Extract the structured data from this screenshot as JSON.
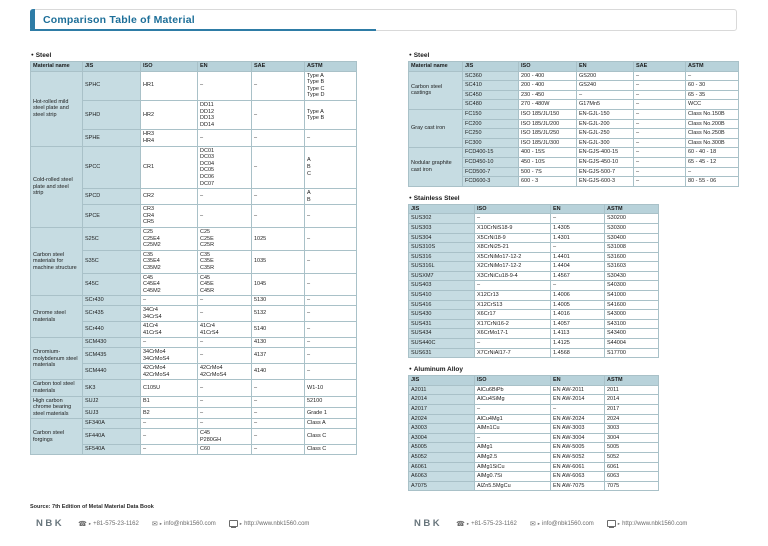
{
  "title": "Comparison Table of Material",
  "icons": {
    "bullet": "●",
    "chevron": "▸",
    "phone": "☎",
    "mail": "✉"
  },
  "sections": {
    "left_steel": {
      "label": "Steel",
      "columns": [
        "Material name",
        "JIS",
        "ISO",
        "EN",
        "SAE",
        "ASTM"
      ],
      "groups": [
        {
          "name": "Hot-rolled mild steel plate and steel strip",
          "rows": [
            {
              "jis": "SPHC",
              "iso": "HR1",
              "en": "–",
              "sae": "–",
              "astm": "Type A\nType B\nType C\nType D"
            },
            {
              "jis": "SPHD",
              "iso": "HR2",
              "en": "DD11\nDD12\nDD13\nDD14",
              "sae": "–",
              "astm": "Type A\nType B"
            },
            {
              "jis": "SPHE",
              "iso": "HR3\nHR4",
              "en": "–",
              "sae": "–",
              "astm": "–"
            }
          ]
        },
        {
          "name": "Cold-rolled steel plate and steel strip",
          "rows": [
            {
              "jis": "SPCC",
              "iso": "CR1",
              "en": "DC01\nDC03\nDC04\nDC05\nDC06\nDC07",
              "sae": "–",
              "astm": "A\nB\nC"
            },
            {
              "jis": "SPCD",
              "iso": "CR2",
              "en": "–",
              "sae": "–",
              "astm": "A\nB"
            },
            {
              "jis": "SPCE",
              "iso": "CR3\nCR4\nCR5",
              "en": "–",
              "sae": "–",
              "astm": "–"
            }
          ]
        },
        {
          "name": "Carbon steel materials for machine structure",
          "rows": [
            {
              "jis": "S25C",
              "iso": "C25\nC25E4\nC25M2",
              "en": "C25\nC25E\nC25R",
              "sae": "1025",
              "astm": "–"
            },
            {
              "jis": "S35C",
              "iso": "C35\nC35E4\nC35M2",
              "en": "C35\nC35E\nC35R",
              "sae": "1035",
              "astm": "–"
            },
            {
              "jis": "S45C",
              "iso": "C45\nC45E4\nC45M2",
              "en": "C45\nC45E\nC45R",
              "sae": "1045",
              "astm": "–"
            }
          ]
        },
        {
          "name": "Chrome steel materials",
          "rows": [
            {
              "jis": "SCr430",
              "iso": "–",
              "en": "–",
              "sae": "5130",
              "astm": "–"
            },
            {
              "jis": "SCr435",
              "iso": "34Cr4\n34CrS4",
              "en": "–",
              "sae": "5132",
              "astm": "–"
            },
            {
              "jis": "SCr440",
              "iso": "41Cr4\n41CrS4",
              "en": "41Cr4\n41CrS4",
              "sae": "5140",
              "astm": "–"
            }
          ]
        },
        {
          "name": "Chromium-molybdenum steel materials",
          "rows": [
            {
              "jis": "SCM430",
              "iso": "–",
              "en": "–",
              "sae": "4130",
              "astm": "–"
            },
            {
              "jis": "SCM435",
              "iso": "34CrMo4\n34CrMoS4",
              "en": "–",
              "sae": "4137",
              "astm": "–"
            },
            {
              "jis": "SCM440",
              "iso": "42CrMo4\n42CrMoS4",
              "en": "42CrMo4\n42CrMoS4",
              "sae": "4140",
              "astm": "–"
            }
          ]
        },
        {
          "name": "Carbon tool steel materials",
          "rows": [
            {
              "jis": "SK3",
              "iso": "C105U",
              "en": "–",
              "sae": "–",
              "astm": "W1-10"
            }
          ]
        },
        {
          "name": "High carbon chrome bearing steel materials",
          "rows": [
            {
              "jis": "SUJ2",
              "iso": "B1",
              "en": "–",
              "sae": "–",
              "astm": "52100"
            },
            {
              "jis": "SUJ3",
              "iso": "B2",
              "en": "–",
              "sae": "–",
              "astm": "Grade 1"
            }
          ]
        },
        {
          "name": "Carbon steel forgings",
          "rows": [
            {
              "jis": "SF340A",
              "iso": "–",
              "en": "–",
              "sae": "–",
              "astm": "Class A"
            },
            {
              "jis": "SF440A",
              "iso": "–",
              "en": "C45\nP280GH",
              "sae": "–",
              "astm": "Class C"
            },
            {
              "jis": "SF540A",
              "iso": "–",
              "en": "C60",
              "sae": "–",
              "astm": "Class C"
            }
          ]
        }
      ]
    },
    "right_steel": {
      "label": "Steel",
      "columns": [
        "Material name",
        "JIS",
        "ISO",
        "EN",
        "SAE",
        "ASTM"
      ],
      "groups": [
        {
          "name": "Carbon steel castings",
          "rows": [
            {
              "jis": "SC360",
              "iso": "200 - 400",
              "en": "GS200",
              "sae": "–",
              "astm": "–"
            },
            {
              "jis": "SC410",
              "iso": "200 - 400",
              "en": "GS240",
              "sae": "–",
              "astm": "60 - 30"
            },
            {
              "jis": "SC450",
              "iso": "230 - 450",
              "en": "–",
              "sae": "–",
              "astm": "65 - 35"
            },
            {
              "jis": "SC480",
              "iso": "270 - 480W",
              "en": "G17Mn5",
              "sae": "–",
              "astm": "WCC"
            }
          ]
        },
        {
          "name": "Gray cast iron",
          "rows": [
            {
              "jis": "FC150",
              "iso": "ISO 185/JL/150",
              "en": "EN-GJL-150",
              "sae": "–",
              "astm": "Class No.150B"
            },
            {
              "jis": "FC200",
              "iso": "ISO 185/JL/200",
              "en": "EN-GJL-200",
              "sae": "–",
              "astm": "Class No.200B"
            },
            {
              "jis": "FC250",
              "iso": "ISO 185/JL/250",
              "en": "EN-GJL-250",
              "sae": "–",
              "astm": "Class No.250B"
            },
            {
              "jis": "FC300",
              "iso": "ISO 185/JL/300",
              "en": "EN-GJL-300",
              "sae": "–",
              "astm": "Class No.300B"
            }
          ]
        },
        {
          "name": "Nodular graphite cast iron",
          "rows": [
            {
              "jis": "FCD400-15",
              "iso": "400 - 15S",
              "en": "EN-GJS-400-15",
              "sae": "–",
              "astm": "60 - 40 - 18"
            },
            {
              "jis": "FCD450-10",
              "iso": "450 - 10S",
              "en": "EN-GJS-450-10",
              "sae": "–",
              "astm": "65 - 45 - 12"
            },
            {
              "jis": "FCD500-7",
              "iso": "500 - 7S",
              "en": "EN-GJS-500-7",
              "sae": "–",
              "astm": "–"
            },
            {
              "jis": "FCD600-3",
              "iso": "600 - 3",
              "en": "EN-GJS-600-3",
              "sae": "–",
              "astm": "80 - 55 - 06"
            }
          ]
        }
      ]
    },
    "stainless": {
      "label": "Stainless Steel",
      "columns": [
        "JIS",
        "ISO",
        "EN",
        "ASTM"
      ],
      "rows": [
        [
          "SUS302",
          "–",
          "–",
          "S30200"
        ],
        [
          "SUS303",
          "X10CrNiS18-9",
          "1.4305",
          "S30300"
        ],
        [
          "SUS304",
          "X5CrNi18-9",
          "1.4301",
          "S30400"
        ],
        [
          "SUS310S",
          "X8CrNi25-21",
          "–",
          "S31008"
        ],
        [
          "SUS316",
          "X5CrNiMo17-12-2",
          "1.4401",
          "S31600"
        ],
        [
          "SUS316L",
          "X2CrNiMo17-12-2",
          "1.4404",
          "S31603"
        ],
        [
          "SUSXM7",
          "X3CrNiCu18-9-4",
          "1.4567",
          "S30430"
        ],
        [
          "SUS403",
          "–",
          "–",
          "S40300"
        ],
        [
          "SUS410",
          "X12Cr13",
          "1.4006",
          "S41000"
        ],
        [
          "SUS416",
          "X12CrS13",
          "1.4005",
          "S41600"
        ],
        [
          "SUS430",
          "X6Cr17",
          "1.4016",
          "S43000"
        ],
        [
          "SUS431",
          "X17CrNi16-2",
          "1.4057",
          "S43100"
        ],
        [
          "SUS434",
          "X6CrMo17-1",
          "1.4113",
          "S43400"
        ],
        [
          "SUS440C",
          "–",
          "1.4125",
          "S44004"
        ],
        [
          "SUS631",
          "X7CrNiAl17-7",
          "1.4568",
          "S17700"
        ]
      ]
    },
    "aluminum": {
      "label": "Aluminum Alloy",
      "columns": [
        "JIS",
        "ISO",
        "EN",
        "ASTM"
      ],
      "rows": [
        [
          "A2011",
          "AlCu6BiPb",
          "EN AW-2011",
          "2011"
        ],
        [
          "A2014",
          "AlCu4SiMg",
          "EN AW-2014",
          "2014"
        ],
        [
          "A2017",
          "–",
          "–",
          "2017"
        ],
        [
          "A2024",
          "AlCu4Mg1",
          "EN AW-2024",
          "2024"
        ],
        [
          "A3003",
          "AlMn1Cu",
          "EN AW-3003",
          "3003"
        ],
        [
          "A3004",
          "–",
          "EN AW-3004",
          "3004"
        ],
        [
          "A5005",
          "AlMg1",
          "EN AW-5005",
          "5005"
        ],
        [
          "A5052",
          "AlMg2.5",
          "EN AW-5052",
          "5052"
        ],
        [
          "A6061",
          "AlMg1SiCu",
          "EN AW-6061",
          "6061"
        ],
        [
          "A6063",
          "AlMg0.7Si",
          "EN AW-6063",
          "6063"
        ],
        [
          "A7075",
          "AlZn5.5MgCu",
          "EN AW-7075",
          "7075"
        ]
      ]
    }
  },
  "footer": {
    "source_note": "Source: 7th Edition of Metal Material Data Book",
    "logo": "NBK",
    "phone": "+81-575-23-1162",
    "email": "info@nbk1560.com",
    "web": "http://www.nbk1560.com"
  }
}
